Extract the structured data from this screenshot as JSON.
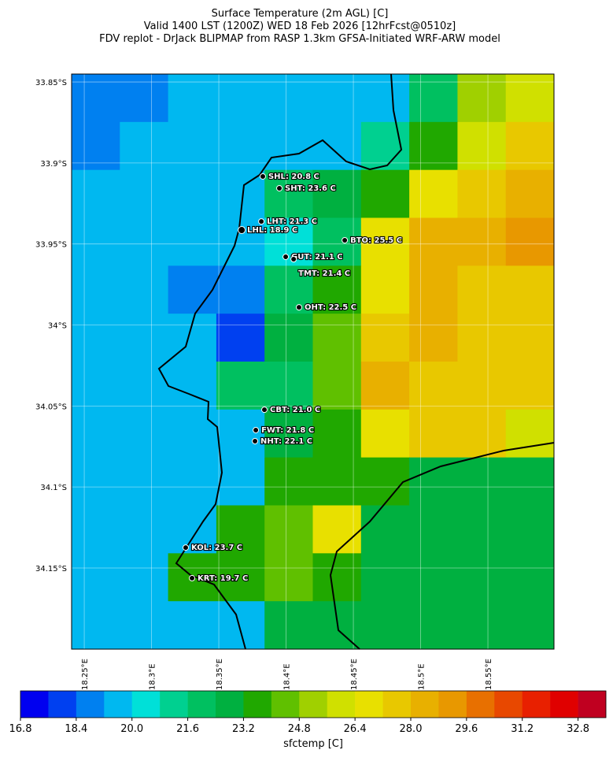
{
  "chart_data": {
    "type": "heatmap-map",
    "title_lines": [
      "Surface Temperature (2m AGL) [C]",
      "Valid 1400 LST (1200Z) WED 18 Feb 2026 [12hrFcst@0510z]",
      "FDV replot - DrJack BLIPMAP from RASP 1.3km GFSA-Initiated WRF-ARW model"
    ],
    "xlim": [
      18.2406,
      18.5991
    ],
    "ylim": [
      33.8451,
      34.2001
    ],
    "xticks": [
      {
        "value": 18.25,
        "label": "18.25°E"
      },
      {
        "value": 18.3,
        "label": "18.3°E"
      },
      {
        "value": 18.35,
        "label": "18.35°E"
      },
      {
        "value": 18.4,
        "label": "18.4°E"
      },
      {
        "value": 18.45,
        "label": "18.45°E"
      },
      {
        "value": 18.5,
        "label": "18.5°E"
      },
      {
        "value": 18.55,
        "label": "18.55°E"
      }
    ],
    "yticks": [
      {
        "value": 33.85,
        "label": "33.85°S"
      },
      {
        "value": 33.9,
        "label": "33.9°S"
      },
      {
        "value": 33.95,
        "label": "33.95°S"
      },
      {
        "value": 34,
        "label": "34°S"
      },
      {
        "value": 34.05,
        "label": "34.05°S"
      },
      {
        "value": 34.1,
        "label": "34.1°S"
      },
      {
        "value": 34.15,
        "label": "34.15°S"
      }
    ],
    "grid": true,
    "temperature_grid": [
      [
        18.8,
        18.8,
        19.6,
        19.6,
        19.6,
        19.6,
        19.6,
        22.4,
        24.8,
        25.6
      ],
      [
        18.8,
        19.6,
        19.6,
        19.6,
        19.6,
        19.6,
        21.2,
        23.6,
        26.0,
        27.6
      ],
      [
        19.6,
        19.6,
        19.6,
        19.6,
        22.0,
        22.8,
        24.0,
        26.8,
        27.6,
        28.4
      ],
      [
        19.6,
        19.6,
        19.6,
        19.6,
        20.4,
        22.4,
        26.8,
        28.4,
        28.4,
        29.2
      ],
      [
        19.6,
        19.6,
        18.8,
        18.8,
        22.0,
        23.6,
        26.8,
        28.4,
        27.6,
        27.6
      ],
      [
        19.6,
        19.6,
        19.6,
        18.0,
        22.8,
        24.4,
        27.6,
        28.4,
        27.6,
        27.6
      ],
      [
        19.6,
        19.6,
        19.6,
        22.0,
        22.4,
        24.4,
        28.4,
        27.6,
        27.6,
        27.6
      ],
      [
        19.6,
        19.6,
        19.6,
        19.6,
        22.8,
        24.0,
        26.8,
        27.6,
        27.6,
        26.0
      ],
      [
        19.6,
        19.6,
        19.6,
        19.6,
        23.6,
        23.6,
        24.0,
        22.8,
        22.8,
        22.8
      ],
      [
        19.6,
        19.6,
        19.6,
        23.6,
        24.4,
        26.8,
        22.8,
        22.8,
        22.8,
        22.8
      ],
      [
        19.6,
        19.6,
        23.6,
        23.6,
        24.4,
        24.0,
        22.8,
        22.8,
        22.8,
        22.8
      ],
      [
        19.6,
        19.6,
        19.6,
        19.6,
        23.2,
        22.8,
        22.8,
        22.8,
        22.8,
        22.8
      ]
    ],
    "stations": [
      {
        "label": "SHL: 20.8 C",
        "lon": 18.3827,
        "lat": 33.9083
      },
      {
        "label": "SHT: 23.6 C",
        "lon": 18.395,
        "lat": 33.9156
      },
      {
        "label": "LHT: 21.3 C",
        "lon": 18.3816,
        "lat": 33.9361
      },
      {
        "label": "LHL: 18.9 C",
        "lon": 18.367,
        "lat": 33.9414
      },
      {
        "label": "BTO: 25.5 C",
        "lon": 18.4436,
        "lat": 33.9477
      },
      {
        "label": "GUT: 21.1 C",
        "lon": 18.3997,
        "lat": 33.9579
      },
      {
        "label": "TMT: 21.4 C",
        "lon": 18.4056,
        "lat": 33.9594
      },
      {
        "label": "OHT: 22.5 C",
        "lon": 18.4096,
        "lat": 33.9891
      },
      {
        "label": "CBT: 21.0 C",
        "lon": 18.3839,
        "lat": 34.0523
      },
      {
        "label": "FWT: 21.8 C",
        "lon": 18.3775,
        "lat": 34.0649
      },
      {
        "label": "NHT: 22.1 C",
        "lon": 18.3769,
        "lat": 34.0717
      },
      {
        "label": "KOL: 23.7 C",
        "lon": 18.3254,
        "lat": 34.1374
      },
      {
        "label": "KRT: 19.7 C",
        "lon": 18.3301,
        "lat": 34.1563
      }
    ],
    "colorbar": {
      "label": "sfctemp [C]",
      "lim": [
        16.8,
        33.6
      ],
      "colors": [
        "#0000f0",
        "#0040f0",
        "#0080f0",
        "#00b8f0",
        "#00e0d8",
        "#00d090",
        "#00c060",
        "#00b040",
        "#20a800",
        "#60c000",
        "#a0d000",
        "#d0e000",
        "#e8e000",
        "#e8c800",
        "#e8b000",
        "#e89800",
        "#e87000",
        "#e84800",
        "#e82000",
        "#e00000",
        "#c00020"
      ],
      "ticks": [
        16.8,
        18.4,
        {
          "value": 20,
          "label": "20.0"
        },
        21.6,
        23.2,
        24.8,
        26.4,
        {
          "value": 28,
          "label": "28.0"
        },
        29.6,
        31.2,
        32.8
      ]
    }
  }
}
